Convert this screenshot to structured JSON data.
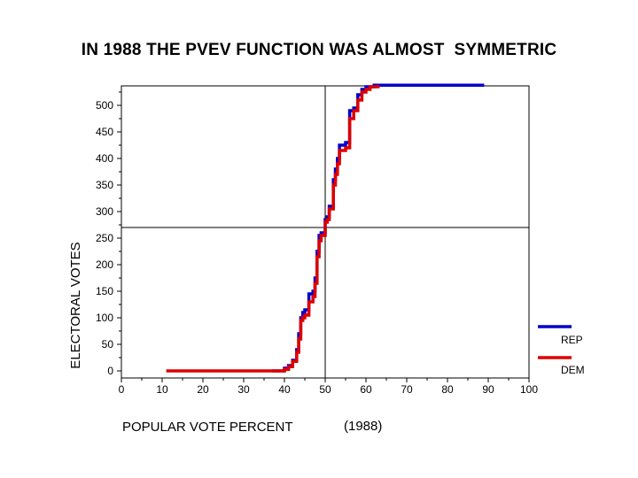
{
  "chart_data": {
    "type": "line",
    "title": "IN 1988 THE PVEV FUNCTION WAS ALMOST  SYMMETRIC",
    "xlabel": "POPULAR VOTE PERCENT",
    "xlabel_note": "(1988)",
    "ylabel": "ELECTORAL VOTES",
    "xlim": [
      0,
      100
    ],
    "ylim": [
      0,
      538
    ],
    "x_ticks": [
      0,
      10,
      20,
      30,
      40,
      50,
      60,
      70,
      80,
      90,
      100
    ],
    "y_ticks": [
      0,
      50,
      100,
      150,
      200,
      250,
      300,
      350,
      400,
      450,
      500
    ],
    "reference_lines": {
      "x": 50,
      "y": 270
    },
    "grid": false,
    "legend_position": "right",
    "series": [
      {
        "name": "REP",
        "color": "#0000cc",
        "x": [
          37,
          40,
          41,
          42,
          43,
          43.5,
          44,
          44.5,
          45,
          46,
          47,
          47.5,
          48,
          48.5,
          49,
          50,
          50.5,
          51,
          52,
          52.5,
          53,
          53.5,
          54,
          55,
          56,
          57,
          58,
          59,
          60,
          62,
          89
        ],
        "y": [
          0,
          5,
          10,
          20,
          40,
          70,
          100,
          110,
          115,
          145,
          150,
          175,
          225,
          255,
          260,
          285,
          290,
          310,
          360,
          380,
          400,
          425,
          425,
          430,
          490,
          495,
          520,
          530,
          535,
          538,
          538
        ]
      },
      {
        "name": "DEM",
        "color": "#dd0000",
        "x": [
          11,
          38,
          40,
          41,
          42,
          43,
          43.5,
          44,
          44.5,
          45,
          46,
          47,
          47.5,
          48,
          48.5,
          49,
          50,
          50.5,
          51,
          52,
          52.5,
          53,
          53.5,
          54,
          55,
          56,
          57,
          58,
          59,
          60,
          61,
          63
        ],
        "y": [
          0,
          0,
          3,
          8,
          18,
          35,
          60,
          95,
          100,
          105,
          130,
          140,
          165,
          215,
          245,
          255,
          280,
          285,
          305,
          350,
          370,
          390,
          415,
          415,
          420,
          475,
          490,
          510,
          525,
          530,
          535,
          538
        ]
      }
    ]
  }
}
